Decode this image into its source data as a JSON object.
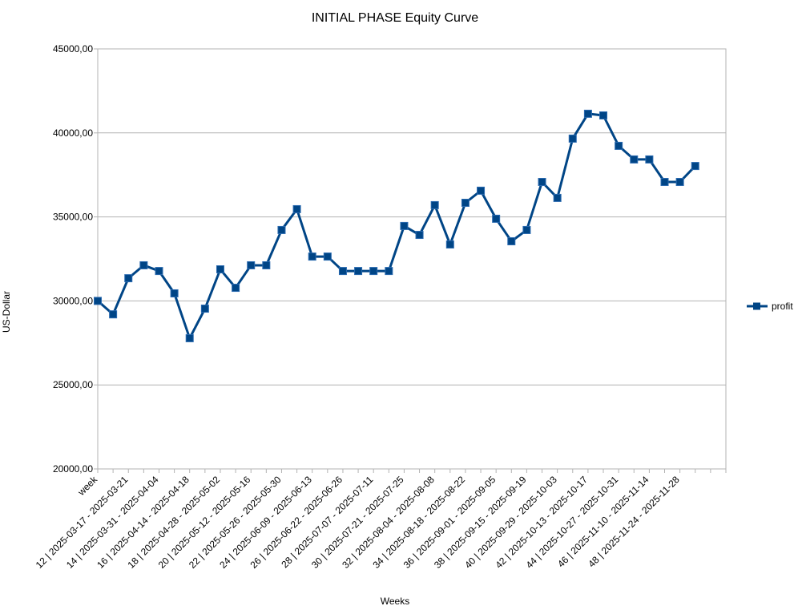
{
  "chart_data": {
    "type": "line",
    "title": "INITIAL PHASE Equity Curve",
    "x_label": "Weeks",
    "y_label": "US-Dollar",
    "categories": [
      "week",
      null,
      "12 | 2025-03-17 - 2025-03-21",
      null,
      "14 | 2025-03-31 - 2025-04-04",
      null,
      "16 | 2025-04-14 - 2025-04-18",
      null,
      "18 | 2025-04-28 - 2025-05-02",
      null,
      "20 | 2025-05-12 - 2025-05-16",
      null,
      "22 | 2025-05-26 - 2025-05-30",
      null,
      "24 | 2025-06-09 - 2025-06-13",
      null,
      "26 | 2025-06-22 - 2025-06-26",
      null,
      "28 | 2025-07-07 - 2025-07-11",
      null,
      "30 | 2025-07-21 - 2025-07-25",
      null,
      "32 | 2025-08-04 - 2025-08-08",
      null,
      "34 | 2025-08-18 - 2025-08-22",
      null,
      "36 | 2025-09-01 - 2025-09-05",
      null,
      "38 | 2025-09-15 - 2025-09-19",
      null,
      "40 | 2025-09-29 - 2025-10-03",
      null,
      "42 | 2025-10-13 - 2025-10-17",
      null,
      "44 | 2025-10-27 - 2025-10-31",
      null,
      "46 | 2025-11-10 - 2025-11-14",
      null,
      "48 | 2025-11-24 - 2025-11-28",
      null,
      null,
      null
    ],
    "series": [
      {
        "name": "profit",
        "color": "#004586",
        "values": [
          30000,
          29200,
          31350,
          32120,
          31780,
          30450,
          27780,
          29540,
          31880,
          30780,
          32120,
          32120,
          34220,
          35460,
          32640,
          32640,
          31780,
          31780,
          31780,
          31780,
          34460,
          33930,
          35700,
          33360,
          35840,
          36560,
          34890,
          33550,
          34220,
          37080,
          36130,
          39660,
          41140,
          41040,
          39230,
          38420,
          38420,
          37080,
          37080,
          38030,
          null,
          null
        ]
      }
    ],
    "ylim": [
      20000,
      45000
    ],
    "yticks": [
      {
        "value": 20000,
        "label": "20000,00"
      },
      {
        "value": 25000,
        "label": "25000,00"
      },
      {
        "value": 30000,
        "label": "30000,00"
      },
      {
        "value": 35000,
        "label": "35000,00"
      },
      {
        "value": 40000,
        "label": "40000,00"
      },
      {
        "value": 45000,
        "label": "45000,00"
      }
    ],
    "grid": true,
    "legend": "right"
  }
}
